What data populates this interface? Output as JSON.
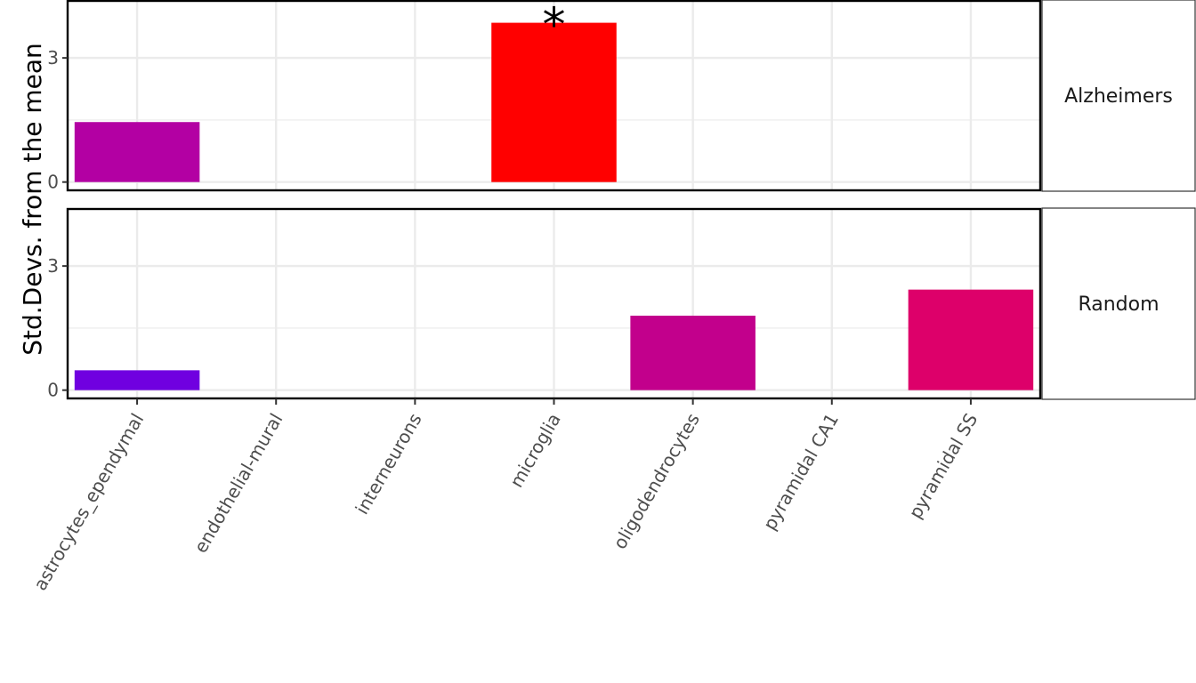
{
  "chart_data": {
    "type": "bar",
    "ylabel": "Std.Devs. from the mean",
    "xlabel": "",
    "categories": [
      "astrocytes_ependymal",
      "endothelial-mural",
      "interneurons",
      "microglia",
      "oligodendrocytes",
      "pyramidal CA1",
      "pyramidal SS"
    ],
    "ylim": [
      -0.2,
      4.4
    ],
    "yticks": [
      0,
      3
    ],
    "grid": true,
    "facets": [
      {
        "name": "Alzheimers",
        "values": [
          1.45,
          0,
          0,
          3.85,
          0,
          0,
          0
        ],
        "colors": [
          "#b300a3",
          null,
          null,
          "#ff0000",
          null,
          null,
          null
        ],
        "significant": [
          false,
          false,
          false,
          true,
          false,
          false,
          false
        ],
        "marker": "*"
      },
      {
        "name": "Random",
        "values": [
          0.48,
          0,
          0,
          0,
          1.8,
          0,
          2.43
        ],
        "colors": [
          "#7000e0",
          null,
          null,
          null,
          "#c2008c",
          null,
          "#dd006a"
        ],
        "significant": [
          false,
          false,
          false,
          false,
          false,
          false,
          false
        ],
        "marker": "*"
      }
    ]
  }
}
